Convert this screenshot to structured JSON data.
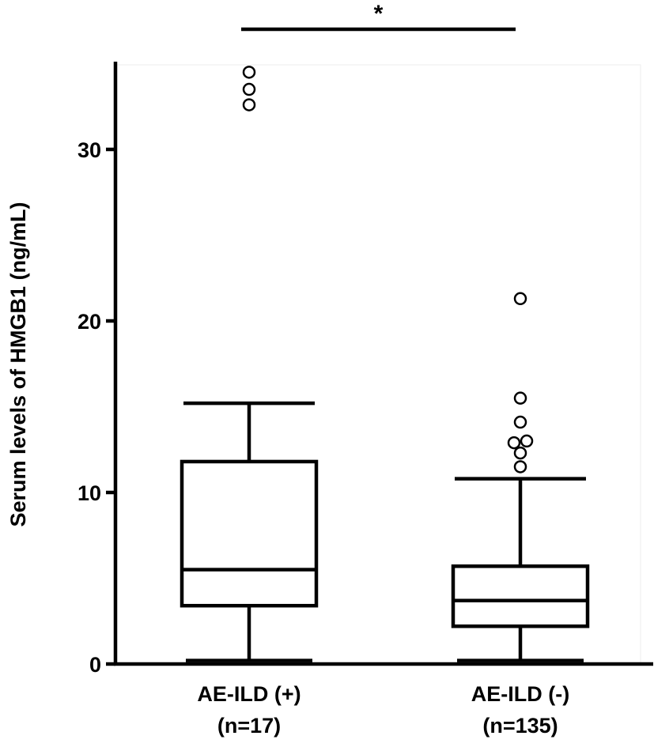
{
  "chart_data": {
    "type": "box",
    "ylabel": "Serum levels of HMGB1 (ng/mL)",
    "ylim": [
      0,
      35
    ],
    "yticks": [
      0,
      10,
      20,
      30
    ],
    "grid": false,
    "groups": [
      {
        "label": "AE-ILD (+)",
        "n_label": "(n=17)",
        "min": 0.2,
        "q1": 3.4,
        "median": 5.5,
        "q3": 11.8,
        "max": 15.2,
        "outliers": [
          32.6,
          33.5,
          34.5
        ]
      },
      {
        "label": "AE-ILD (-)",
        "n_label": "(n=135)",
        "min": 0.2,
        "q1": 2.2,
        "median": 3.7,
        "q3": 5.7,
        "max": 10.8,
        "outliers": [
          11.5,
          12.3,
          12.9,
          13.0,
          14.1,
          15.5,
          21.3
        ]
      }
    ],
    "significance": {
      "label": "*",
      "between": [
        0,
        1
      ]
    }
  }
}
